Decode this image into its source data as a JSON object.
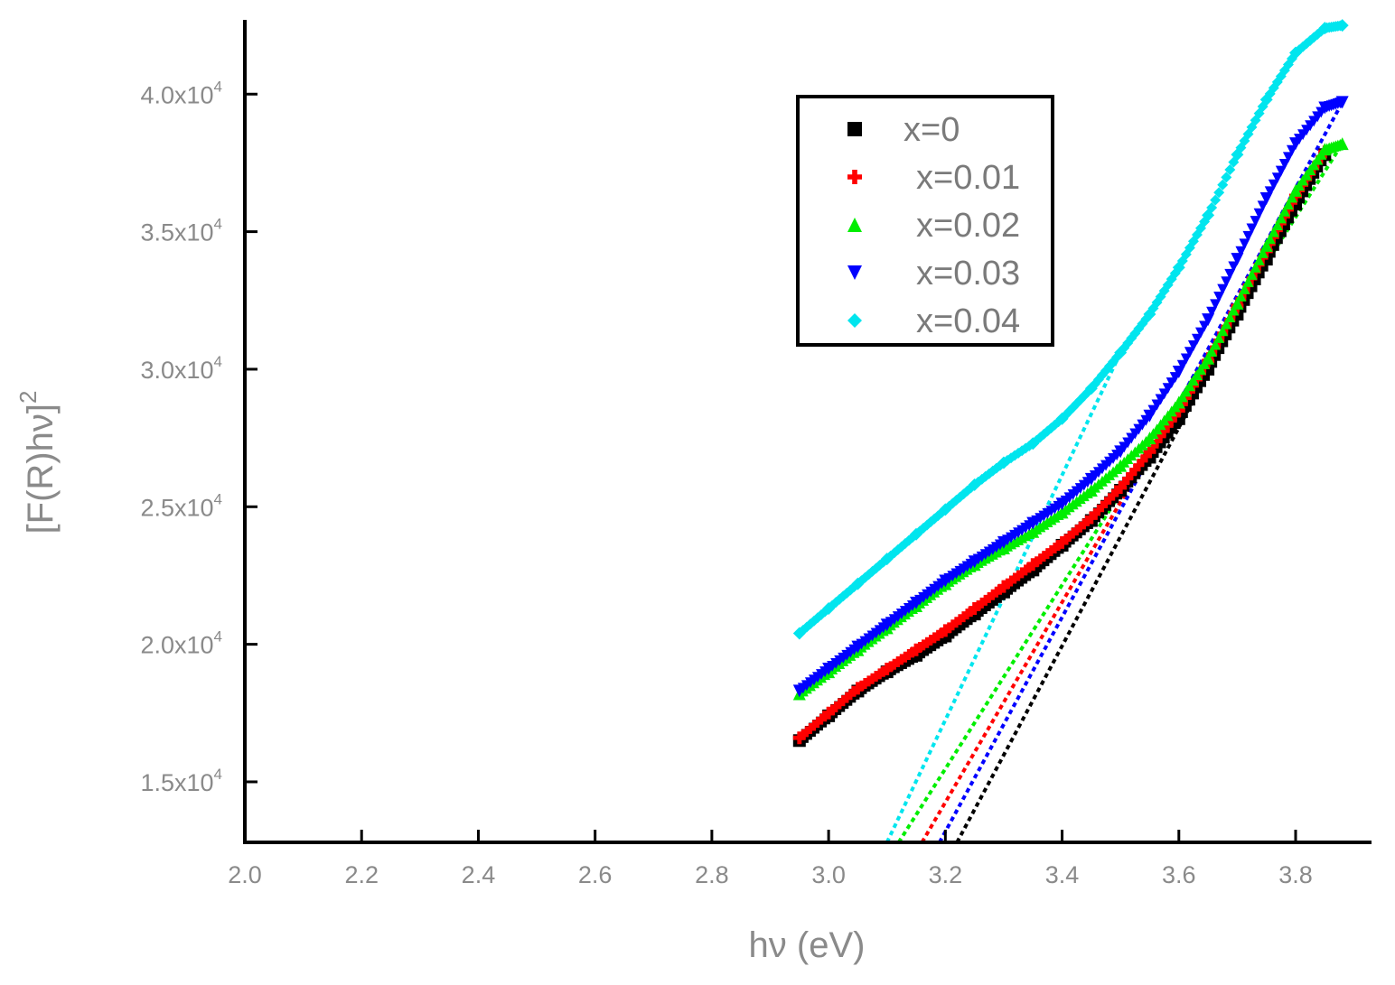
{
  "chart_data": {
    "type": "scatter",
    "xlabel": "hν (eV)",
    "ylabel_base": "[F(R)hν]",
    "ylabel_exp": "2",
    "xlim": [
      2.0,
      3.93
    ],
    "ylim": [
      12800,
      42700
    ],
    "x_ticks": [
      2.0,
      2.2,
      2.4,
      2.6,
      2.8,
      3.0,
      3.2,
      3.4,
      3.6,
      3.8
    ],
    "x_tick_labels": [
      "2.0",
      "2.2",
      "2.4",
      "2.6",
      "2.8",
      "3.0",
      "3.2",
      "3.4",
      "3.6",
      "3.8"
    ],
    "y_ticks": [
      15000,
      20000,
      25000,
      30000,
      35000,
      40000
    ],
    "y_tick_labels": [
      {
        "mantissa": "1.5x10",
        "exp": "4"
      },
      {
        "mantissa": "2.0x10",
        "exp": "4"
      },
      {
        "mantissa": "2.5x10",
        "exp": "4"
      },
      {
        "mantissa": "3.0x10",
        "exp": "4"
      },
      {
        "mantissa": "3.5x10",
        "exp": "4"
      },
      {
        "mantissa": "4.0x10",
        "exp": "4"
      }
    ],
    "grid": false,
    "legend_position": "top-right",
    "series": [
      {
        "name": "x=0",
        "color": "#000000",
        "marker": "square",
        "x": [
          2.95,
          3.0,
          3.05,
          3.1,
          3.15,
          3.2,
          3.25,
          3.3,
          3.35,
          3.4,
          3.45,
          3.5,
          3.55,
          3.6,
          3.65,
          3.7,
          3.75,
          3.8,
          3.85
        ],
        "y": [
          16500,
          17400,
          18300,
          19000,
          19600,
          20300,
          21100,
          21900,
          22700,
          23600,
          24500,
          25600,
          26800,
          28200,
          30000,
          32000,
          34000,
          36000,
          37800
        ],
        "fit_line": [
          [
            3.22,
            12800
          ],
          [
            3.85,
            37800
          ]
        ]
      },
      {
        "name": "x=0.01",
        "color": "#ff0000",
        "marker": "plus",
        "x": [
          2.95,
          3.0,
          3.05,
          3.1,
          3.15,
          3.2,
          3.25,
          3.3,
          3.35,
          3.4,
          3.45,
          3.5,
          3.55,
          3.6,
          3.65,
          3.7,
          3.75,
          3.8,
          3.85
        ],
        "y": [
          16600,
          17500,
          18400,
          19100,
          19800,
          20500,
          21300,
          22100,
          22900,
          23700,
          24600,
          25700,
          27000,
          28500,
          30300,
          32300,
          34300,
          36300,
          37900
        ],
        "fit_line": [
          [
            3.16,
            12800
          ],
          [
            3.85,
            37900
          ]
        ]
      },
      {
        "name": "x=0.02",
        "color": "#00ee00",
        "marker": "triangle-up",
        "x": [
          2.95,
          3.0,
          3.05,
          3.1,
          3.15,
          3.2,
          3.25,
          3.3,
          3.35,
          3.4,
          3.45,
          3.5,
          3.55,
          3.6,
          3.65,
          3.7,
          3.75,
          3.8,
          3.85,
          3.88
        ],
        "y": [
          18200,
          19000,
          19800,
          20600,
          21400,
          22200,
          22900,
          23500,
          24100,
          24800,
          25600,
          26500,
          27500,
          28800,
          30400,
          32400,
          34500,
          36500,
          38000,
          38200
        ],
        "fit_line": [
          [
            3.12,
            12800
          ],
          [
            3.88,
            38200
          ]
        ]
      },
      {
        "name": "x=0.03",
        "color": "#0000ff",
        "marker": "triangle-down",
        "x": [
          2.95,
          3.0,
          3.05,
          3.1,
          3.15,
          3.2,
          3.25,
          3.3,
          3.35,
          3.4,
          3.45,
          3.5,
          3.55,
          3.6,
          3.65,
          3.7,
          3.75,
          3.8,
          3.85,
          3.88
        ],
        "y": [
          18300,
          19100,
          19900,
          20700,
          21500,
          22300,
          23000,
          23700,
          24400,
          25100,
          26000,
          27000,
          28300,
          29900,
          31800,
          34000,
          36200,
          38200,
          39500,
          39700
        ],
        "fit_line": [
          [
            3.19,
            12800
          ],
          [
            3.88,
            39700
          ]
        ]
      },
      {
        "name": "x=0.04",
        "color": "#00e5ee",
        "marker": "diamond",
        "x": [
          2.95,
          3.0,
          3.05,
          3.1,
          3.15,
          3.2,
          3.25,
          3.3,
          3.35,
          3.4,
          3.45,
          3.5,
          3.55,
          3.6,
          3.65,
          3.7,
          3.75,
          3.8,
          3.85,
          3.88
        ],
        "y": [
          20400,
          21300,
          22200,
          23100,
          24000,
          24900,
          25800,
          26600,
          27300,
          28200,
          29300,
          30600,
          32000,
          33700,
          35600,
          37800,
          39800,
          41500,
          42400,
          42500
        ],
        "fit_line": [
          [
            3.1,
            12800
          ],
          [
            3.5,
            30600
          ]
        ]
      }
    ]
  }
}
